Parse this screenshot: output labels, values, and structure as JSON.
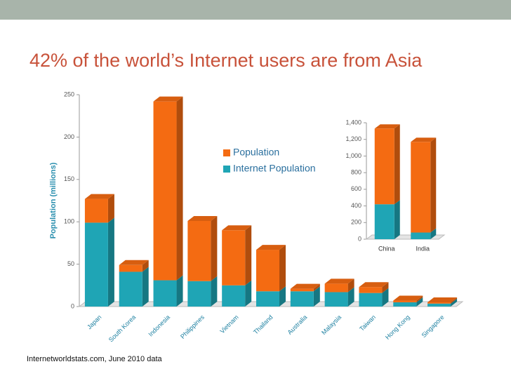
{
  "title": "42% of the world’s Internet users are from Asia",
  "source": "Internetworldstats.com, June 2010 data",
  "chart_data": [
    {
      "type": "bar",
      "stacked": true,
      "ylabel": "Population (millions)",
      "categories": [
        "Japan",
        "South Korea",
        "Indonesia",
        "Philippines",
        "Vietnam",
        "Thailand",
        "Australia",
        "Malaysia",
        "Taiwan",
        "Hong Kong",
        "Singapore"
      ],
      "series": [
        {
          "name": "Internet Population",
          "color": "#1fa5b5",
          "values": [
            99,
            41,
            31,
            30,
            25,
            18,
            18,
            17,
            16,
            5,
            3.5
          ]
        },
        {
          "name": "Population",
          "color": "#f46b12",
          "values": [
            28,
            8,
            211,
            71,
            65,
            49,
            3,
            10,
            7,
            2,
            1.5
          ]
        }
      ],
      "ylim": [
        0,
        250
      ],
      "yticks": [
        0,
        50,
        100,
        150,
        200,
        250
      ]
    },
    {
      "type": "bar",
      "stacked": true,
      "categories": [
        "China",
        "India"
      ],
      "series": [
        {
          "color": "#1fa5b5",
          "values": [
            420,
            80
          ]
        },
        {
          "color": "#f46b12",
          "values": [
            910,
            1090
          ]
        }
      ],
      "ylim": [
        0,
        1400
      ],
      "yticks": [
        0,
        200,
        400,
        600,
        800,
        {
          "value": 1000,
          "label": "1,000"
        },
        {
          "value": 1200,
          "label": "1,200"
        },
        {
          "value": 1400,
          "label": "1,400"
        }
      ]
    }
  ]
}
